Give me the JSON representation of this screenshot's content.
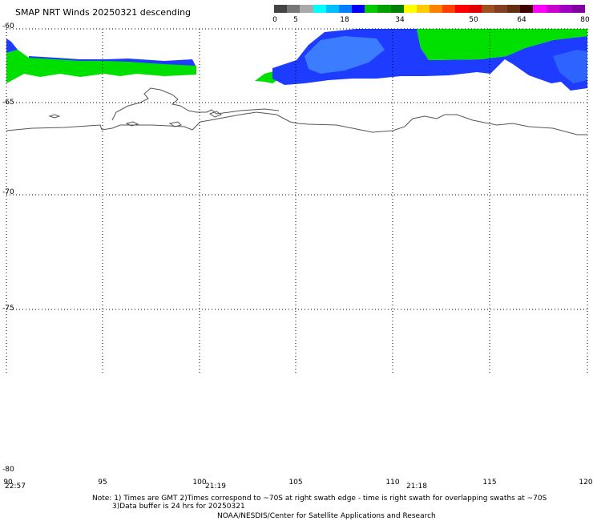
{
  "title": "SMAP NRT Winds  20250321 descending",
  "colorbar": {
    "labels": [
      "0",
      "5",
      "18",
      "34",
      "50",
      "64",
      "80"
    ],
    "segments": [
      "#444444",
      "#777777",
      "#aaaaaa",
      "#00ffff",
      "#00bfff",
      "#0080ff",
      "#0000ff",
      "#00cc00",
      "#00a000",
      "#008000",
      "#ffff00",
      "#ffcc00",
      "#ff8000",
      "#ff4000",
      "#ff0000",
      "#e00000",
      "#a05020",
      "#804020",
      "#603010",
      "#400000",
      "#ff00ff",
      "#cc00cc",
      "#a000c0",
      "#8000a0"
    ]
  },
  "latitude_labels": [
    "-60",
    "-65",
    "-70",
    "-75",
    "-80"
  ],
  "longitude_labels": [
    "90",
    "95",
    "100",
    "105",
    "110",
    "115",
    "120"
  ],
  "swath_times": [
    "22:57",
    "21:19",
    "21:18"
  ],
  "notes": {
    "line1": "Note: 1) Times are GMT 2)Times correspond to ~70S at right swath edge - time is right swath for overlapping swaths at ~70S",
    "line2": "3)Data buffer is 24 hrs for 20250321",
    "line3": "NOAA/NESDIS/Center for Satellite Applications and Research"
  },
  "colors": {
    "wind_low": "#1e3cff",
    "wind_mid": "#00e000",
    "wind_light": "#40a0ff",
    "coastline": "#555555",
    "grid": "#000000"
  }
}
